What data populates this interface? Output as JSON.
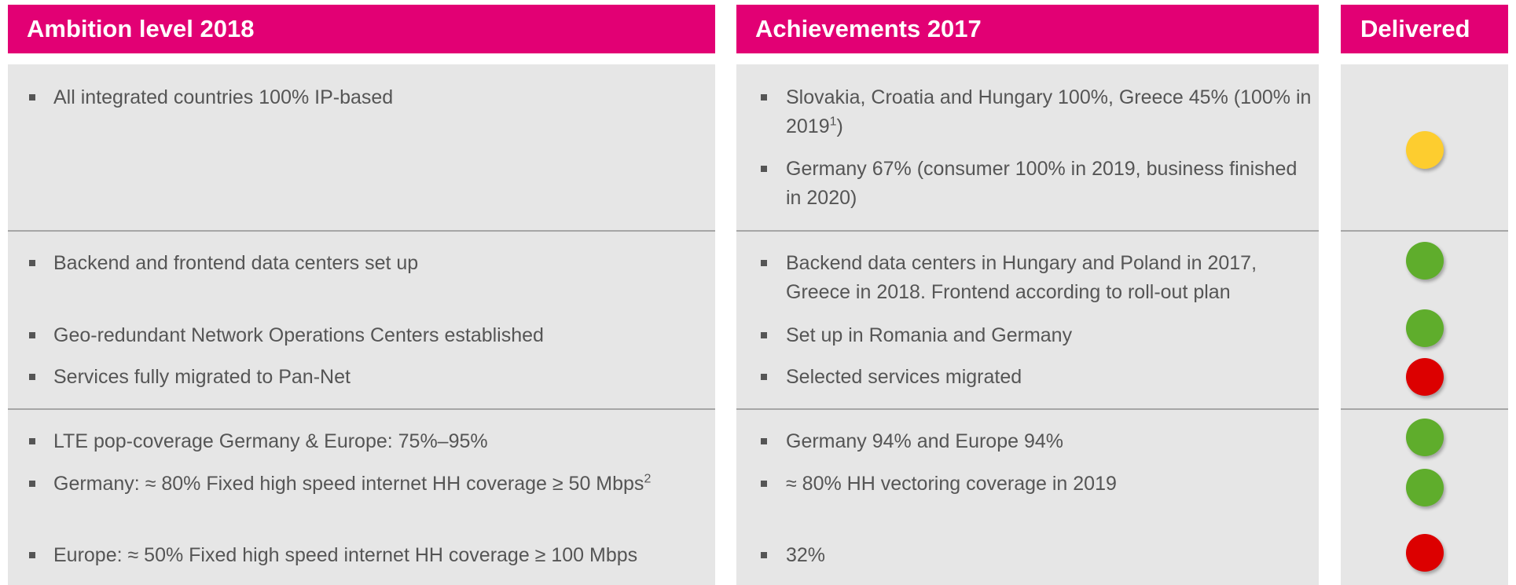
{
  "headers": {
    "ambition": "Ambition level 2018",
    "achievements": "Achievements 2017",
    "delivered": "Delivered"
  },
  "sections": [
    {
      "ambition": [
        {
          "text": "All integrated countries 100% IP-based"
        }
      ],
      "achievements": [
        {
          "text": "Slovakia, Croatia and Hungary 100%, Greece 45% (100% in 2019",
          "sup": "1",
          "tail": ")"
        },
        {
          "text": "Germany 67% (consumer 100% in 2019, business finished in 2020)"
        }
      ],
      "status": [
        {
          "color": "#fdcd2f"
        }
      ]
    },
    {
      "ambition": [
        {
          "text": "Backend and frontend data centers set up"
        },
        {
          "text": "Geo-redundant Network Operations Centers established"
        },
        {
          "text": "Services fully migrated to Pan-Net"
        }
      ],
      "achievements": [
        {
          "text": "Backend data centers in Hungary and Poland in 2017, Greece in 2018. Frontend according to roll-out plan"
        },
        {
          "text": "Set up in Romania and Germany"
        },
        {
          "text": "Selected services migrated"
        }
      ],
      "status": [
        {
          "color": "#5fad2c"
        },
        {
          "color": "#5fad2c"
        },
        {
          "color": "#dc0000"
        }
      ]
    },
    {
      "ambition": [
        {
          "text": "LTE pop-coverage Germany & Europe: 75%–95%"
        },
        {
          "text": "Germany: ≈ 80% Fixed high speed internet HH coverage ≥ 50 Mbps",
          "sup": "2"
        },
        {
          "text": "Europe: ≈ 50% Fixed high speed internet HH coverage ≥ 100 Mbps"
        }
      ],
      "achievements": [
        {
          "text": "Germany 94% and Europe 94%"
        },
        {
          "text": "≈ 80% HH vectoring coverage in 2019"
        },
        {
          "text": "32%"
        }
      ],
      "status": [
        {
          "color": "#5fad2c"
        },
        {
          "color": "#5fad2c"
        },
        {
          "color": "#dc0000"
        }
      ]
    }
  ]
}
